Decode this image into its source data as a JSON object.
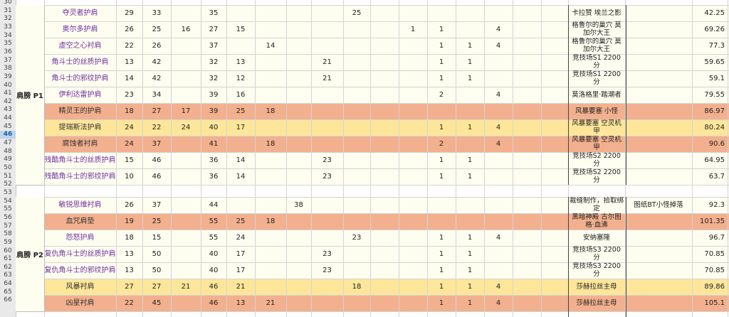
{
  "colors": {
    "pink": "#f2b08e",
    "yellow": "#fde69a",
    "lightYellow": "#fdfdf0",
    "name_purple": "#7030a0",
    "selected_row": "#bcd4ec"
  },
  "row_numbers": [
    "30",
    "31",
    "32",
    "33",
    "34",
    "35",
    "36",
    "37",
    "38",
    "39",
    "40",
    "41",
    "42",
    "43",
    "44",
    "45",
    "46",
    "47",
    "48",
    "49",
    "50",
    "51",
    "52",
    "53",
    "54",
    "55",
    "56",
    "57",
    "58",
    "59",
    "60",
    "61",
    "62",
    "63",
    "64",
    "65",
    "66"
  ],
  "selected_row_number": "46",
  "groups": [
    {
      "label": "肩膀 P1",
      "items": [
        {
          "name": "夺灵者护肩",
          "fill": "lightYellow",
          "v": {
            "a": "29",
            "b": "33",
            "d": "35",
            "i": "25"
          },
          "source": "卡拉赞 埃兰之影",
          "score": "42.25"
        },
        {
          "name": "奥尔多护肩",
          "fill": "lightYellow",
          "v": {
            "a": "26",
            "b": "25",
            "c": "16",
            "d": "27",
            "e": "15",
            "k": "1",
            "l": "1",
            "n": "4"
          },
          "source": "格鲁尔的巢穴 莫加尔大王",
          "score": "69.26"
        },
        {
          "name": "虚空之心衬肩",
          "fill": "lightYellow",
          "v": {
            "a": "22",
            "b": "26",
            "d": "37",
            "f": "14",
            "l": "1",
            "m": "1",
            "n": "4"
          },
          "source": "格鲁尔的巢穴 莫加尔大王",
          "score": "77.3"
        },
        {
          "name": "角斗士的丝质护肩",
          "fill": "lightYellow",
          "v": {
            "a": "13",
            "b": "42",
            "d": "32",
            "e": "13",
            "h": "21",
            "l": "1",
            "m": "1"
          },
          "source": "竞技场S1 2200分",
          "score": "59.65"
        },
        {
          "name": "角斗士的邪纹护肩",
          "fill": "lightYellow",
          "v": {
            "a": "14",
            "b": "42",
            "d": "32",
            "e": "12",
            "h": "21",
            "l": "1",
            "m": "1"
          },
          "source": "竞技场S1 2200分",
          "score": "59.1"
        },
        {
          "name": "伊利达雷护肩",
          "fill": "lightYellow",
          "v": {
            "a": "23",
            "b": "34",
            "d": "39",
            "e": "16",
            "l": "2",
            "n": "4"
          },
          "source": "莫洛格里·踏潮者",
          "score": "79.55"
        },
        {
          "name": "精灵王的护肩",
          "fill": "pink",
          "v": {
            "a": "18",
            "b": "27",
            "c": "17",
            "d": "39",
            "e": "25",
            "f": "18"
          },
          "source": "风暴要塞 小怪",
          "score": "86.97"
        },
        {
          "name": "提瑞斯法护肩",
          "fill": "yellow",
          "v": {
            "a": "24",
            "b": "22",
            "c": "24",
            "d": "40",
            "e": "17",
            "l": "1",
            "m": "1",
            "n": "4"
          },
          "source": "风暴要塞 空灵机甲",
          "score": "80.24"
        },
        {
          "name": "腐蚀者衬肩",
          "fill": "pink",
          "v": {
            "a": "24",
            "b": "37",
            "d": "41",
            "f": "18",
            "l": "2",
            "n": "4"
          },
          "source": "风暴要塞 空灵机甲",
          "score": "90.6"
        },
        {
          "name": "残酷角斗士的丝质护肩",
          "fill": "lightYellow",
          "v": {
            "a": "15",
            "b": "46",
            "d": "36",
            "e": "14",
            "h": "23",
            "l": "1",
            "m": "1"
          },
          "source": "竞技场S2 2200分",
          "score": "64.95"
        },
        {
          "name": "残酷角斗士的邪纹护肩",
          "fill": "lightYellow",
          "v": {
            "a": "10",
            "b": "46",
            "d": "36",
            "e": "14",
            "h": "23",
            "l": "1",
            "m": "1"
          },
          "source": "竞技场S2 2200分",
          "score": "63.7"
        }
      ]
    },
    {
      "label": "肩膀 P2",
      "items": [
        {
          "name": "敏锐思维衬肩",
          "fill": "lightYellow",
          "v": {
            "a": "26",
            "b": "37",
            "d": "44",
            "g": "38"
          },
          "source": "裁缝制作，拾取绑定",
          "note": "图纸BT小怪掉落",
          "score": "92.3"
        },
        {
          "name": "血咒肩垫",
          "fill": "pink",
          "v": {
            "a": "19",
            "b": "25",
            "d": "55",
            "e": "25",
            "f": "18"
          },
          "source": "黑暗神殿 古尔图格·血沸",
          "score": "101.35"
        },
        {
          "name": "怨怒护肩",
          "fill": "lightYellow",
          "v": {
            "a": "18",
            "b": "15",
            "d": "55",
            "e": "24",
            "i": "23",
            "l": "1",
            "m": "1",
            "n": "4"
          },
          "source": "安纳塞隆",
          "score": "96.7"
        },
        {
          "name": "复仇角斗士的丝质护肩",
          "fill": "lightYellow",
          "v": {
            "a": "13",
            "b": "50",
            "d": "40",
            "e": "17",
            "h": "23",
            "l": "1",
            "m": "1"
          },
          "source": "竞技场S3 2200分",
          "score": "70.85"
        },
        {
          "name": "复仇角斗士的邪纹护肩",
          "fill": "lightYellow",
          "v": {
            "a": "13",
            "b": "50",
            "d": "40",
            "e": "17",
            "h": "23",
            "l": "1",
            "m": "1"
          },
          "source": "竞技场S3 2200分",
          "score": "70.85"
        },
        {
          "name": "风暴衬肩",
          "fill": "yellow",
          "v": {
            "a": "27",
            "b": "27",
            "c": "21",
            "d": "46",
            "e": "21",
            "i": "18",
            "l": "1",
            "m": "1",
            "n": "4"
          },
          "source": "莎赫拉丝主母",
          "score": "89.86"
        },
        {
          "name": "凶星衬肩",
          "fill": "pink",
          "v": {
            "a": "22",
            "b": "45",
            "d": "46",
            "e": "13",
            "f": "21",
            "l": "1",
            "m": "1",
            "n": "4"
          },
          "source": "莎赫拉丝主母",
          "score": "105.1"
        }
      ]
    }
  ]
}
